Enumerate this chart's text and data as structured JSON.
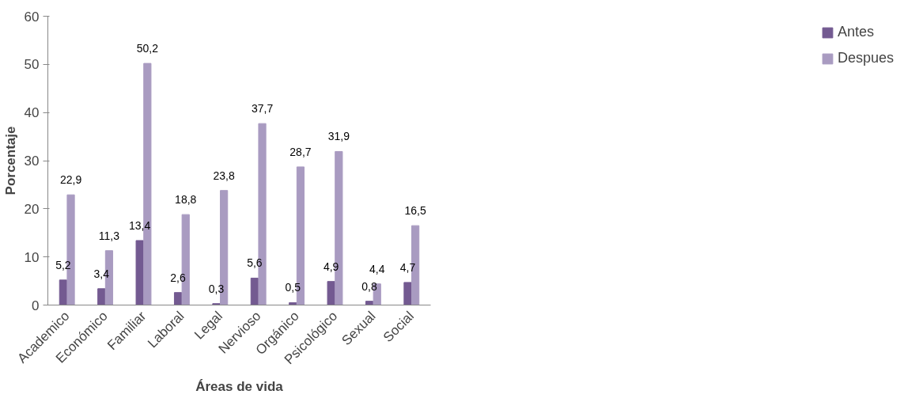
{
  "chart_data": {
    "type": "bar",
    "xlabel": "Áreas de vida",
    "ylabel": "Porcentaje",
    "categories": [
      "Academico",
      "Económico",
      "Familiar",
      "Laboral",
      "Legal",
      "Nervioso",
      "Orgánico",
      "Psicológico",
      "Sexual",
      "Social"
    ],
    "series": [
      {
        "name": "Antes",
        "color": "#735a91",
        "values": [
          5.2,
          3.4,
          13.4,
          2.6,
          0.3,
          5.6,
          0.5,
          4.9,
          0.8,
          4.7
        ],
        "value_labels": [
          "5,2",
          "3,4",
          "13,4",
          "2,6",
          "0,3",
          "5,6",
          "0,5",
          "4,9",
          "0,8",
          "4,7"
        ]
      },
      {
        "name": "Despues",
        "color": "#a99bc1",
        "values": [
          22.9,
          11.3,
          50.2,
          18.8,
          23.8,
          37.7,
          28.7,
          31.9,
          4.4,
          16.5
        ],
        "value_labels": [
          "22,9",
          "11,3",
          "50,2",
          "18,8",
          "23,8",
          "37,7",
          "28,7",
          "31,9",
          "4,4",
          "16,5"
        ]
      }
    ],
    "ylim": [
      0,
      60
    ],
    "yticks": [
      0,
      10,
      20,
      30,
      40,
      50,
      60
    ],
    "grid": false,
    "legend": "right"
  }
}
